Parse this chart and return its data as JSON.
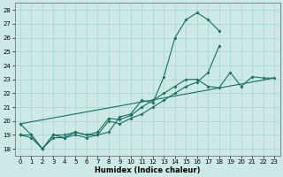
{
  "xlabel": "Humidex (Indice chaleur)",
  "xlim": [
    -0.5,
    23.5
  ],
  "ylim": [
    17.5,
    28.5
  ],
  "xticks": [
    0,
    1,
    2,
    3,
    4,
    5,
    6,
    7,
    8,
    9,
    10,
    11,
    12,
    13,
    14,
    15,
    16,
    17,
    18,
    19,
    20,
    21,
    22,
    23
  ],
  "yticks": [
    18,
    19,
    20,
    21,
    22,
    23,
    24,
    25,
    26,
    27,
    28
  ],
  "bg_color": "#cce9e5",
  "grid_color": "#aad4ce",
  "line_color": "#1a6e62",
  "series1_x": [
    0,
    1,
    2,
    3,
    4,
    5,
    6,
    7,
    8,
    9,
    10,
    11,
    12,
    13,
    14,
    15,
    16,
    17,
    18
  ],
  "series1_y": [
    19.8,
    19.0,
    18.0,
    19.0,
    18.8,
    19.2,
    19.0,
    19.0,
    19.2,
    20.3,
    20.5,
    21.5,
    21.3,
    23.2,
    26.0,
    27.3,
    27.8,
    27.3,
    26.5
  ],
  "series2_x": [
    0,
    1,
    2,
    3,
    4,
    5,
    6,
    7,
    8,
    9,
    10,
    11,
    12,
    13,
    14,
    15,
    16,
    17,
    18
  ],
  "series2_y": [
    19.0,
    19.0,
    18.0,
    18.8,
    18.8,
    19.0,
    18.8,
    19.0,
    20.0,
    19.8,
    20.2,
    20.5,
    21.0,
    21.5,
    22.0,
    22.5,
    22.8,
    23.5,
    25.4
  ],
  "series3_x": [
    0,
    1,
    2,
    3,
    4,
    5,
    6,
    7,
    8,
    9,
    10,
    11,
    12,
    13,
    14,
    15,
    16,
    17,
    18,
    19,
    20,
    21,
    22,
    23
  ],
  "series3_y": [
    19.0,
    18.8,
    18.0,
    19.0,
    19.0,
    19.2,
    19.0,
    19.2,
    20.2,
    20.1,
    20.4,
    21.0,
    21.5,
    22.0,
    22.5,
    23.0,
    23.0,
    22.5,
    22.4,
    23.5,
    22.5,
    23.2,
    23.1,
    23.1
  ],
  "series4_x": [
    0,
    23
  ],
  "series4_y": [
    19.8,
    23.1
  ]
}
